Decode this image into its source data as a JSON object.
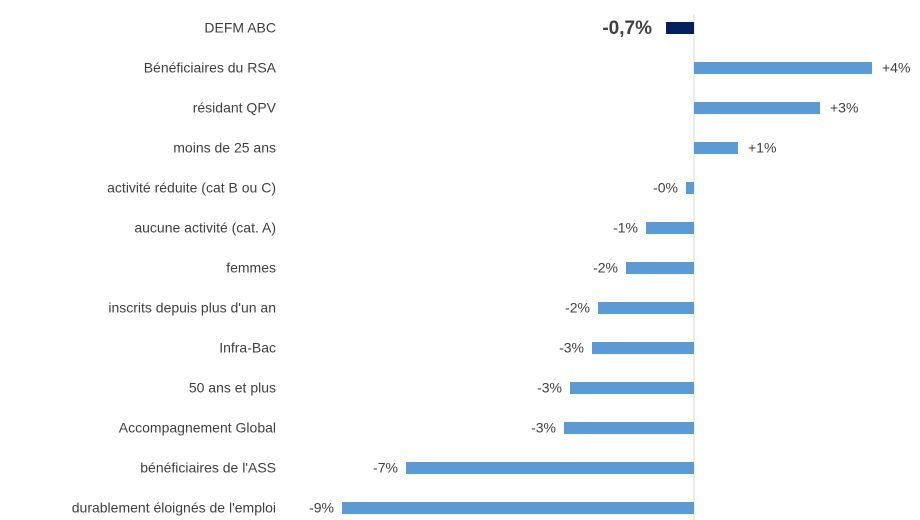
{
  "chart_data": {
    "type": "hbar",
    "categories": [
      "DEFM ABC",
      "Bénéficiaires du RSA",
      "résidant QPV",
      "moins de 25 ans",
      "activité réduite (cat B ou C)",
      "aucune activité (cat. A)",
      "femmes",
      "inscrits depuis plus d'un an",
      "Infra-Bac",
      "50 ans et plus",
      "Accompagnement Global",
      "bénéficiaires de l'ASS",
      "durablement éloignés de l'emploi"
    ],
    "values": [
      -0.7,
      4.45,
      3.15,
      1.1,
      -0.2,
      -1.2,
      -1.7,
      -2.4,
      -2.55,
      -3.1,
      -3.25,
      -7.2,
      -8.8
    ],
    "value_labels": [
      "-0,7%",
      "+4%",
      "+3%",
      "+1%",
      "-0%",
      "-1%",
      "-2%",
      "-2%",
      "-3%",
      "-3%",
      "-3%",
      "-7%",
      "-9%"
    ],
    "colors": [
      "#002060",
      "#5b9bd5",
      "#5b9bd5",
      "#5b9bd5",
      "#5b9bd5",
      "#5b9bd5",
      "#5b9bd5",
      "#5b9bd5",
      "#5b9bd5",
      "#5b9bd5",
      "#5b9bd5",
      "#5b9bd5",
      "#5b9bd5"
    ],
    "xlim": [
      -9.2,
      5.3
    ],
    "grid": false
  }
}
